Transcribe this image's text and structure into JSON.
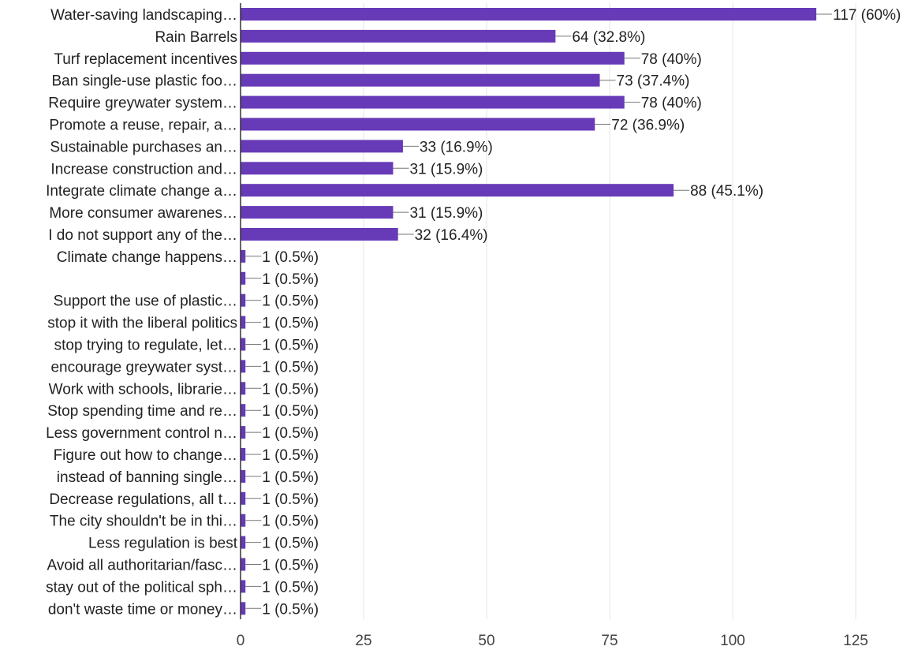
{
  "chart_data": {
    "type": "bar",
    "orientation": "horizontal",
    "title": "",
    "xlabel": "",
    "ylabel": "",
    "xlim": [
      0,
      125
    ],
    "xticks": [
      0,
      25,
      50,
      75,
      100,
      125
    ],
    "grid": true,
    "bar_color": "#673ab7",
    "categories": [
      "Water-saving landscaping…",
      "Rain Barrels",
      "Turf replacement incentives",
      "Ban single-use plastic foo…",
      "Require greywater system…",
      "Promote a reuse, repair, a…",
      "Sustainable purchases an…",
      "Increase construction and…",
      "Integrate climate change a…",
      "More consumer awarenes…",
      "I do not support any of the…",
      "Climate change happens…",
      "",
      "Support the use of plastic…",
      "stop it with the liberal politics",
      "stop trying to regulate, let…",
      "encourage greywater syst…",
      "Work with schools, librarie…",
      "Stop spending time and re…",
      "Less government control n…",
      "Figure out how to change…",
      "instead of banning single…",
      "Decrease regulations, all t…",
      "The city shouldn't be in thi…",
      "Less regulation is best",
      "Avoid all authoritarian/fasc…",
      "stay out of the political sph…",
      "don't waste time or money…"
    ],
    "values": [
      117,
      64,
      78,
      73,
      78,
      72,
      33,
      31,
      88,
      31,
      32,
      1,
      1,
      1,
      1,
      1,
      1,
      1,
      1,
      1,
      1,
      1,
      1,
      1,
      1,
      1,
      1,
      1
    ],
    "value_labels": [
      "117 (60%)",
      "64 (32.8%)",
      "78 (40%)",
      "73 (37.4%)",
      "78 (40%)",
      "72 (36.9%)",
      "33 (16.9%)",
      "31 (15.9%)",
      "88 (45.1%)",
      "31 (15.9%)",
      "32 (16.4%)",
      "1 (0.5%)",
      "1 (0.5%)",
      "1 (0.5%)",
      "1 (0.5%)",
      "1 (0.5%)",
      "1 (0.5%)",
      "1 (0.5%)",
      "1 (0.5%)",
      "1 (0.5%)",
      "1 (0.5%)",
      "1 (0.5%)",
      "1 (0.5%)",
      "1 (0.5%)",
      "1 (0.5%)",
      "1 (0.5%)",
      "1 (0.5%)",
      "1 (0.5%)"
    ]
  }
}
